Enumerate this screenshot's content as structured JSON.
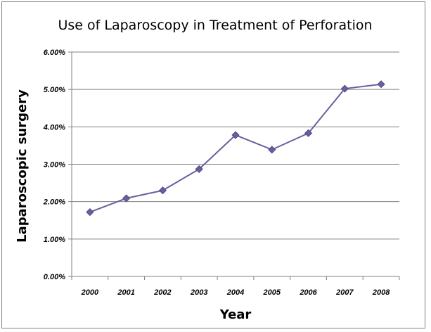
{
  "chart_data": {
    "type": "line",
    "title": "Use of Laparoscopy in Treatment of Perforation",
    "xlabel": "Year",
    "ylabel": "Laparoscopic surgery",
    "categories": [
      "2000",
      "2001",
      "2002",
      "2003",
      "2004",
      "2005",
      "2006",
      "2007",
      "2008"
    ],
    "series": [
      {
        "values": [
          1.72,
          2.09,
          2.3,
          2.87,
          3.78,
          3.39,
          3.83,
          5.02,
          5.14
        ],
        "color": "#6a5f9e",
        "marker": "diamond"
      }
    ],
    "ylim": [
      0,
      6
    ],
    "ytick_labels": [
      "0.00%",
      "1.00%",
      "2.00%",
      "3.00%",
      "4.00%",
      "5.00%",
      "6.00%"
    ],
    "ytick_values": [
      0,
      1,
      2,
      3,
      4,
      5,
      6
    ],
    "grid": "horizontal",
    "legend": "none"
  }
}
